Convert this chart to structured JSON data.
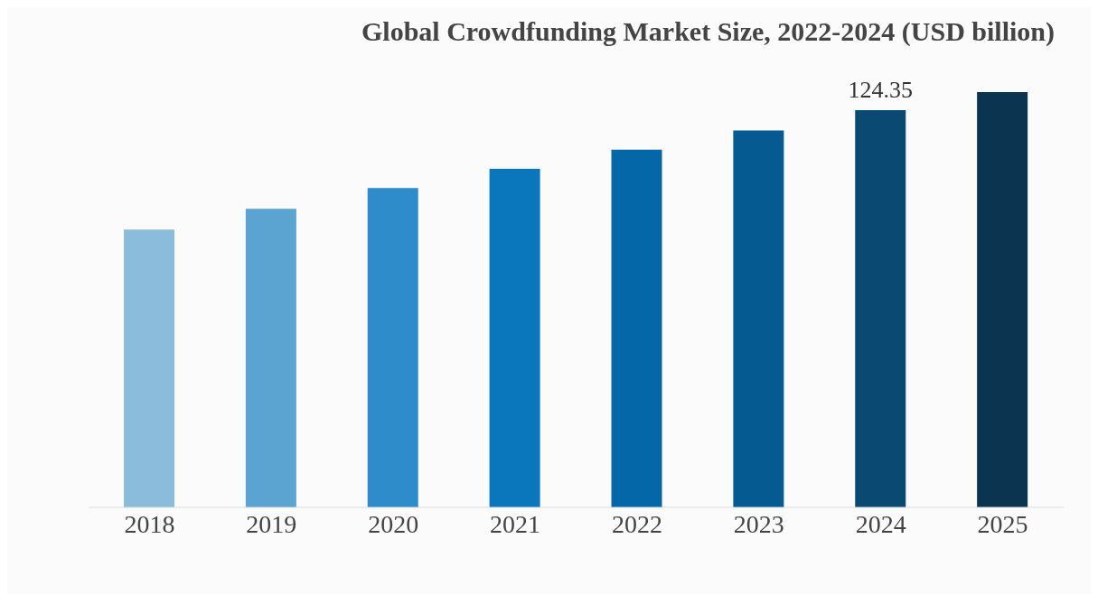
{
  "chart_data": {
    "type": "bar",
    "title": "Global Crowdfunding Market Size, 2022-2024 (USD billion)",
    "categories": [
      "2018",
      "2019",
      "2020",
      "2021",
      "2022",
      "2023",
      "2024",
      "2025"
    ],
    "values": [
      87,
      93.5,
      100,
      106,
      112,
      118,
      124.35,
      130
    ],
    "colors": [
      "#8bbcdb",
      "#5ba3d0",
      "#2e8ccb",
      "#0a77bd",
      "#0467a8",
      "#045a91",
      "#0a4a72",
      "#0b3450"
    ],
    "value_labels": [
      null,
      null,
      null,
      null,
      null,
      null,
      "124.35",
      null
    ]
  }
}
